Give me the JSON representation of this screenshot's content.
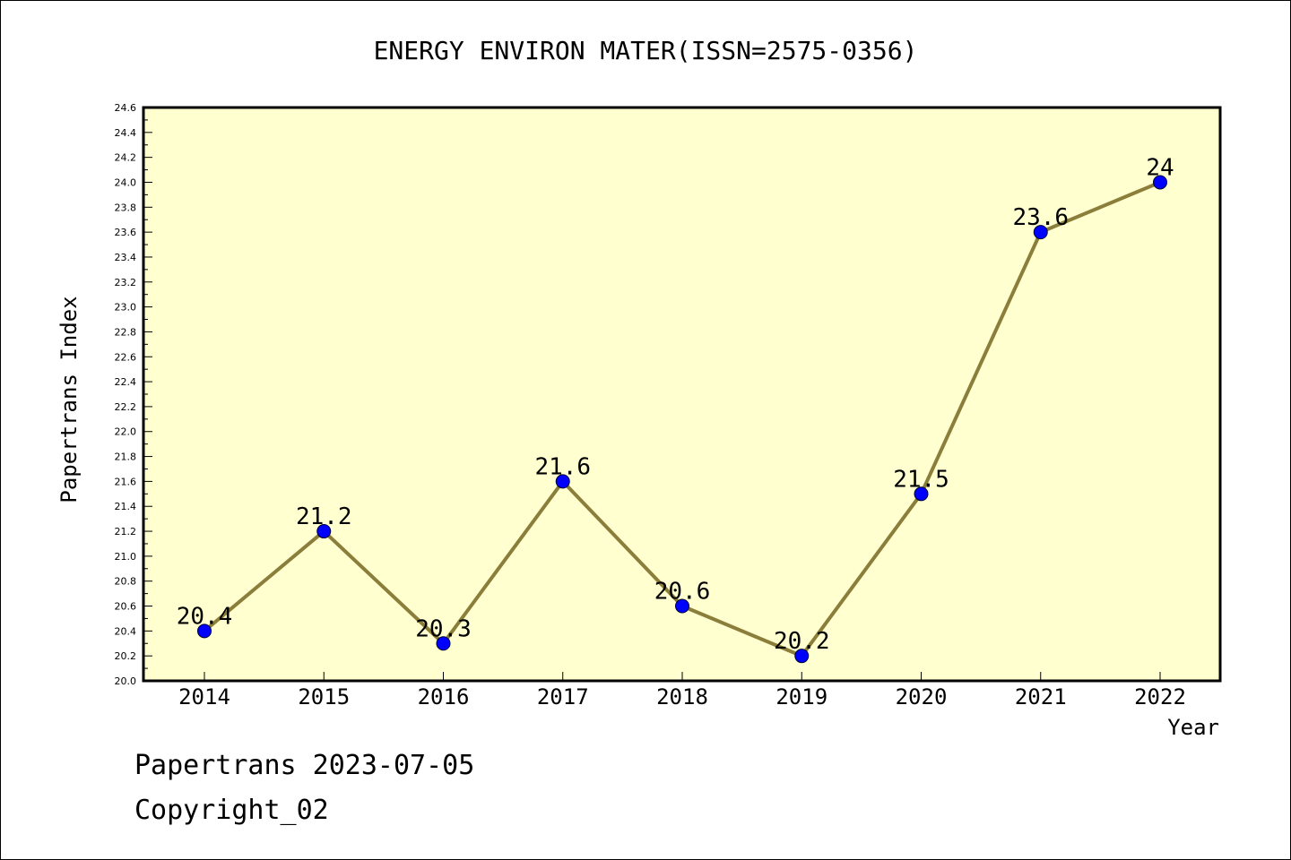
{
  "chart_data": {
    "type": "line",
    "title": "ENERGY ENVIRON MATER(ISSN=2575-0356)",
    "xlabel": "Year",
    "ylabel": "Papertrans Index",
    "categories": [
      "2014",
      "2015",
      "2016",
      "2017",
      "2018",
      "2019",
      "2020",
      "2021",
      "2022"
    ],
    "values": [
      20.4,
      21.2,
      20.3,
      21.6,
      20.6,
      20.2,
      21.5,
      23.6,
      24.0
    ],
    "data_labels": [
      "20.4",
      "21.2",
      "20.3",
      "21.6",
      "20.6",
      "20.2",
      "21.5",
      "23.6",
      "24"
    ],
    "ylim": [
      20.0,
      24.6
    ],
    "yticks": [
      "20.0",
      "20.2",
      "20.4",
      "20.6",
      "20.8",
      "21.0",
      "21.2",
      "21.4",
      "21.6",
      "21.8",
      "22.0",
      "22.2",
      "22.4",
      "22.6",
      "22.8",
      "23.0",
      "23.2",
      "23.4",
      "23.6",
      "23.8",
      "24.0",
      "24.2",
      "24.4",
      "24.6"
    ],
    "grid": false,
    "colors": {
      "plot_background": "#ffffd0",
      "line": "#8b7d3a",
      "marker": "#0000ff"
    }
  },
  "footer": {
    "line1": "Papertrans 2023-07-05",
    "line2": "Copyright_02"
  }
}
